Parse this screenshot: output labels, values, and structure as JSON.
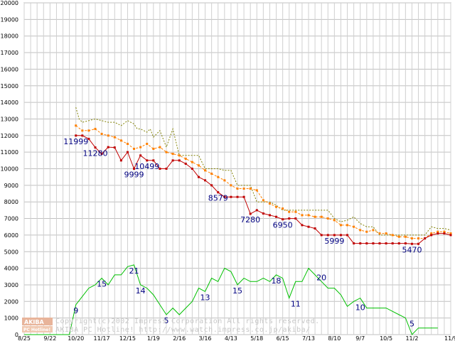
{
  "chart_data": {
    "type": "line",
    "title": "",
    "xlabel": "",
    "ylabel": "",
    "ylim": [
      0,
      20000
    ],
    "yticks": [
      0,
      1000,
      2000,
      3000,
      4000,
      5000,
      6000,
      7000,
      8000,
      9000,
      10000,
      11000,
      12000,
      13000,
      14000,
      15000,
      16000,
      17000,
      18000,
      19000,
      20000
    ],
    "xticks": [
      "8/25",
      "9/22",
      "10/20",
      "11/17",
      "12/15",
      "1/19",
      "2/16",
      "3/16",
      "4/13",
      "5/18",
      "6/15",
      "7/13",
      "8/10",
      "9/7",
      "10/5",
      "11/2",
      "11/9"
    ],
    "grid": true,
    "series": [
      {
        "role": "max-price",
        "color": "#808000",
        "style": "dotted",
        "x": [
          8,
          8.5,
          9,
          10,
          11,
          12,
          13,
          14,
          15,
          16,
          17,
          17.5,
          18,
          19,
          19.5,
          20,
          21,
          22,
          23,
          24,
          25,
          26,
          27,
          28,
          29,
          30,
          31,
          32,
          33,
          34,
          35,
          36,
          37,
          38,
          39,
          40,
          41,
          42,
          43,
          44,
          45,
          46,
          47,
          48,
          49,
          50,
          51,
          52,
          53,
          54,
          55,
          56,
          57,
          58,
          59,
          60,
          61,
          62,
          63,
          64,
          65,
          66
        ],
        "y": [
          13700,
          13000,
          12800,
          12900,
          13000,
          12900,
          12800,
          12800,
          12600,
          12900,
          12700,
          12400,
          12400,
          12200,
          12400,
          11900,
          12300,
          11300,
          12400,
          10800,
          10800,
          10800,
          10800,
          10000,
          10000,
          10000,
          9900,
          9900,
          9000,
          9000,
          9000,
          8000,
          8000,
          8000,
          7800,
          7500,
          7500,
          7500,
          7500,
          7500,
          7500,
          7500,
          7500,
          7000,
          6800,
          6900,
          7100,
          6700,
          6500,
          6500,
          6000,
          6000,
          6000,
          6000,
          6000,
          6000,
          6000,
          6000,
          6500,
          6400,
          6400,
          6300
        ]
      },
      {
        "role": "average-price",
        "color": "#ff8000",
        "style": "dashed-markers",
        "x": [
          8,
          9,
          10,
          11,
          12,
          13,
          14,
          15,
          16,
          17,
          18,
          19,
          20,
          21,
          22,
          23,
          24,
          25,
          26,
          27,
          28,
          29,
          30,
          31,
          32,
          33,
          34,
          35,
          36,
          37,
          38,
          39,
          40,
          41,
          42,
          43,
          44,
          45,
          46,
          47,
          48,
          49,
          50,
          51,
          52,
          53,
          54,
          55,
          56,
          57,
          58,
          59,
          60,
          61,
          62,
          63,
          64,
          65,
          66
        ],
        "y": [
          12600,
          12300,
          12300,
          12400,
          12100,
          12000,
          11900,
          11700,
          11500,
          11200,
          11300,
          11500,
          11200,
          11300,
          11000,
          10900,
          10800,
          10600,
          10400,
          10200,
          9900,
          9700,
          9500,
          9300,
          9000,
          8800,
          8800,
          8800,
          8700,
          8100,
          7900,
          7700,
          7600,
          7400,
          7400,
          7200,
          7200,
          7100,
          7100,
          7000,
          6900,
          6600,
          6600,
          6500,
          6300,
          6200,
          6300,
          6100,
          6100,
          6000,
          5900,
          5900,
          5800,
          5800,
          5800,
          6100,
          6200,
          6200,
          6100
        ]
      },
      {
        "role": "min-price",
        "color": "#c00000",
        "style": "solid-markers",
        "x": [
          8,
          9,
          10,
          11,
          12,
          13,
          14,
          15,
          16,
          17,
          18,
          19,
          20,
          21,
          22,
          23,
          24,
          25,
          26,
          27,
          28,
          29,
          30,
          31,
          32,
          33,
          34,
          35,
          36,
          37,
          38,
          39,
          40,
          41,
          42,
          43,
          44,
          45,
          46,
          47,
          48,
          49,
          50,
          51,
          52,
          53,
          54,
          55,
          56,
          57,
          58,
          59,
          60,
          61,
          62,
          63,
          64,
          65,
          66
        ],
        "y": [
          11999,
          11999,
          11800,
          11280,
          10900,
          11300,
          11280,
          10500,
          11000,
          9999,
          10800,
          10499,
          10499,
          10000,
          10000,
          10499,
          10499,
          10300,
          10000,
          9500,
          9300,
          9000,
          8579,
          8300,
          8300,
          8300,
          8300,
          7280,
          7500,
          7300,
          7200,
          7100,
          6950,
          7000,
          7000,
          6600,
          6500,
          6400,
          6000,
          6000,
          5999,
          6000,
          5999,
          5500,
          5500,
          5500,
          5500,
          5500,
          5500,
          5500,
          5500,
          5500,
          5470,
          5470,
          5800,
          6000,
          6100,
          6100,
          6000
        ]
      },
      {
        "role": "count",
        "color": "#00c000",
        "style": "solid",
        "x": [
          0,
          1,
          2,
          3,
          4,
          5,
          6,
          7,
          8,
          9,
          10,
          11,
          12,
          13,
          14,
          15,
          16,
          17,
          18,
          19,
          20,
          21,
          22,
          23,
          24,
          25,
          26,
          27,
          28,
          29,
          30,
          31,
          32,
          33,
          34,
          35,
          36,
          37,
          38,
          39,
          40,
          41,
          42,
          43,
          44,
          45,
          46,
          47,
          48,
          49,
          50,
          51,
          52,
          53,
          54,
          55,
          56,
          57,
          58,
          59,
          60,
          61,
          62,
          63,
          64
        ],
        "y": [
          0,
          0,
          0,
          0,
          0,
          0,
          0,
          0,
          1800,
          2300,
          2800,
          3000,
          3400,
          3000,
          3600,
          3600,
          4100,
          4200,
          3000,
          2800,
          2400,
          1800,
          1200,
          1600,
          1200,
          1600,
          2000,
          2800,
          2600,
          3400,
          3200,
          4000,
          3800,
          3000,
          3400,
          3200,
          3200,
          3400,
          3200,
          3600,
          3400,
          2200,
          3200,
          3200,
          4000,
          3600,
          3200,
          2800,
          2800,
          2400,
          1700,
          2000,
          2200,
          1600,
          1600,
          1600,
          1600,
          1400,
          1200,
          1000,
          0,
          400,
          400,
          400,
          400
        ]
      }
    ],
    "annotations": [
      {
        "text": "11999",
        "x": 8,
        "y": 11999
      },
      {
        "text": "11280",
        "x": 11,
        "y": 11280
      },
      {
        "text": "9999",
        "x": 17,
        "y": 9999
      },
      {
        "text": "10499",
        "x": 19,
        "y": 10499
      },
      {
        "text": "8579",
        "x": 30,
        "y": 8579
      },
      {
        "text": "7280",
        "x": 35,
        "y": 7280
      },
      {
        "text": "6950",
        "x": 40,
        "y": 6950
      },
      {
        "text": "5999",
        "x": 48,
        "y": 5999
      },
      {
        "text": "5470",
        "x": 60,
        "y": 5470
      },
      {
        "text": "9",
        "x": 8,
        "y": 1800
      },
      {
        "text": "15",
        "x": 12,
        "y": 3400
      },
      {
        "text": "21",
        "x": 17,
        "y": 4200
      },
      {
        "text": "14",
        "x": 18,
        "y": 3000
      },
      {
        "text": "5",
        "x": 22,
        "y": 1200
      },
      {
        "text": "13",
        "x": 28,
        "y": 2600
      },
      {
        "text": "15",
        "x": 33,
        "y": 3000
      },
      {
        "text": "18",
        "x": 39,
        "y": 3600
      },
      {
        "text": "11",
        "x": 42,
        "y": 2200
      },
      {
        "text": "20",
        "x": 46,
        "y": 3800
      },
      {
        "text": "10",
        "x": 52,
        "y": 2000
      },
      {
        "text": "5",
        "x": 60,
        "y": 1000
      }
    ],
    "watermark": {
      "logo_top": "AKIBA",
      "logo_bottom": "PC Hotline!",
      "line1": "Copyright(c)2002 Impress Corporation All rights reserved.",
      "line2": "AKIBA PC Hotline!  http://www.watch.impress.co.jp/akiba/"
    }
  }
}
